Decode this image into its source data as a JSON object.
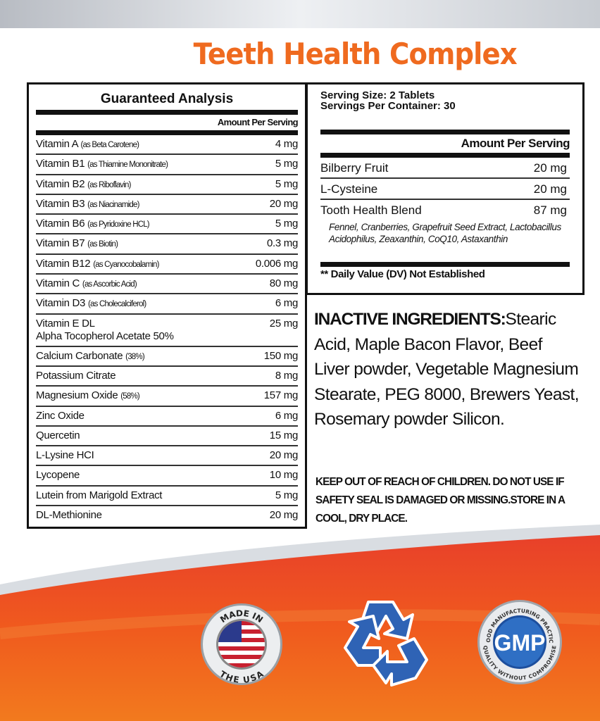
{
  "title": "Teeth Health Complex",
  "guaranteed_analysis": {
    "heading": "Guaranteed Analysis",
    "column_header": "Amount Per Serving",
    "rows": [
      {
        "name": "Vitamin A",
        "detail": "(as Beta Carotene)",
        "amount": "4 mg"
      },
      {
        "name": "Vitamin B1",
        "detail": "(as Thiamine Mononitrate)",
        "amount": "5 mg"
      },
      {
        "name": "Vitamin B2",
        "detail": "(as Riboflavin)",
        "amount": "5 mg"
      },
      {
        "name": "Vitamin B3",
        "detail": "(as Niacinamide)",
        "amount": "20 mg"
      },
      {
        "name": "Vitamin B6",
        "detail": "(as Pyridoxine HCL)",
        "amount": "5 mg"
      },
      {
        "name": "Vitamin B7",
        "detail": "(as Biotin)",
        "amount": "0.3 mg"
      },
      {
        "name": "Vitamin B12",
        "detail": "(as Cyanocobalamin)",
        "amount": "0.006 mg"
      },
      {
        "name": "Vitamin C",
        "detail": "(as Ascorbic Acid)",
        "amount": "80 mg"
      },
      {
        "name": "Vitamin D3",
        "detail": "(as Cholecalciferol)",
        "amount": "6 mg"
      },
      {
        "name": "Vitamin E DL",
        "detail": "Alpha Tocopherol Acetate 50%",
        "amount": "25 mg"
      },
      {
        "name": "Calcium Carbonate",
        "detail": "(38%)",
        "amount": "150 mg"
      },
      {
        "name": "Potassium Citrate",
        "detail": "",
        "amount": "8 mg"
      },
      {
        "name": "Magnesium Oxide",
        "detail": "(58%)",
        "amount": "157 mg"
      },
      {
        "name": "Zinc Oxide",
        "detail": "",
        "amount": "6 mg"
      },
      {
        "name": "Quercetin",
        "detail": "",
        "amount": "15 mg"
      },
      {
        "name": "L-Lysine HCI",
        "detail": "",
        "amount": "20 mg"
      },
      {
        "name": "Lycopene",
        "detail": "",
        "amount": "10 mg"
      },
      {
        "name": "Lutein from Marigold Extract",
        "detail": "",
        "amount": "5 mg"
      },
      {
        "name": "DL-Methionine",
        "detail": "",
        "amount": "20 mg"
      }
    ]
  },
  "supplement_facts": {
    "serving_size": "Serving Size: 2 Tablets",
    "servings_per_container": "Servings Per Container: 30",
    "column_header": "Amount Per Serving",
    "rows": [
      {
        "name": "Bilberry Fruit",
        "amount": "20 mg"
      },
      {
        "name": "L-Cysteine",
        "amount": "20 mg"
      },
      {
        "name": "Tooth Health Blend",
        "amount": "87 mg"
      }
    ],
    "blend_ingredients": "Fennel, Cranberries, Grapefruit Seed Extract, Lactobacillus Acidophilus, Zeaxanthin, CoQ10, Astaxanthin",
    "footnote": "** Daily Value (DV) Not Established"
  },
  "inactive": {
    "label": "INACTIVE INGREDIENTS:",
    "text": "Stearic Acid, Maple Bacon Flavor, Beef Liver powder, Vegetable Magnesium Stearate, PEG 8000, Brewers Yeast, Rosemary powder Silicon."
  },
  "warning": "KEEP OUT OF REACH OF CHILDREN.  DO NOT USE IF SAFETY SEAL IS DAMAGED OR MISSING.STORE IN A COOL, DRY PLACE.",
  "badges": {
    "usa_top": "MADE IN",
    "usa_bottom": "THE USA",
    "recycle_icon": "recycle-icon",
    "gmp": "GMP",
    "gmp_top": "GOOD MANUFACTURING PRACTICE",
    "gmp_bottom": "QUALITY WITHOUT COMPROMISE"
  },
  "colors": {
    "title": "#ef6a1f",
    "band": "#ee5a1e",
    "badge_blue": "#2f63b5"
  }
}
